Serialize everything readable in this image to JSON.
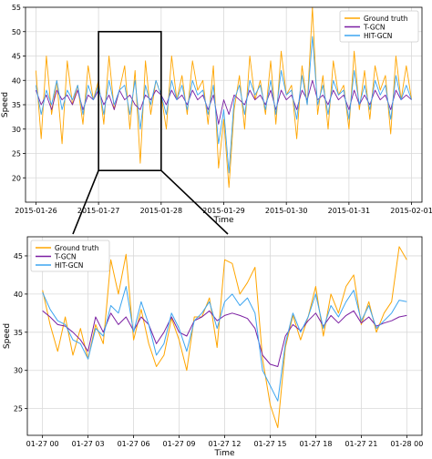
{
  "chart_data": [
    {
      "type": "line",
      "title": "",
      "xlabel": "Time",
      "ylabel": "Speed",
      "xlim": [
        "2015-01-25T20:00",
        "2015-02-01T04:00"
      ],
      "ylim": [
        15,
        55
      ],
      "xticks": [
        "2015-01-26",
        "2015-01-27",
        "2015-01-28",
        "2015-01-29",
        "2015-01-30",
        "2015-01-31",
        "2015-02-01"
      ],
      "yticks": [
        20,
        25,
        30,
        35,
        40,
        45,
        50,
        55
      ],
      "grid": true,
      "legend": "top-right",
      "zoom_box": {
        "x": [
          "2015-01-27T00:00",
          "2015-01-28T00:00"
        ],
        "y": [
          21.5,
          50
        ]
      },
      "series": [
        {
          "name": "Ground truth",
          "color": "#ffa500",
          "x": [
            "2015-01-26T00:00",
            "2015-01-26T02:00",
            "2015-01-26T04:00",
            "2015-01-26T06:00",
            "2015-01-26T08:00",
            "2015-01-26T10:00",
            "2015-01-26T12:00",
            "2015-01-26T14:00",
            "2015-01-26T16:00",
            "2015-01-26T18:00",
            "2015-01-26T20:00",
            "2015-01-26T22:00",
            "2015-01-27T00:00",
            "2015-01-27T02:00",
            "2015-01-27T04:00",
            "2015-01-27T06:00",
            "2015-01-27T08:00",
            "2015-01-27T10:00",
            "2015-01-27T12:00",
            "2015-01-27T14:00",
            "2015-01-27T16:00",
            "2015-01-27T18:00",
            "2015-01-27T20:00",
            "2015-01-27T22:00",
            "2015-01-28T00:00",
            "2015-01-28T02:00",
            "2015-01-28T04:00",
            "2015-01-28T06:00",
            "2015-01-28T08:00",
            "2015-01-28T10:00",
            "2015-01-28T12:00",
            "2015-01-28T14:00",
            "2015-01-28T16:00",
            "2015-01-28T18:00",
            "2015-01-28T20:00",
            "2015-01-28T22:00",
            "2015-01-29T00:00",
            "2015-01-29T02:00",
            "2015-01-29T04:00",
            "2015-01-29T06:00",
            "2015-01-29T08:00",
            "2015-01-29T10:00",
            "2015-01-29T12:00",
            "2015-01-29T14:00",
            "2015-01-29T16:00",
            "2015-01-29T18:00",
            "2015-01-29T20:00",
            "2015-01-29T22:00",
            "2015-01-30T00:00",
            "2015-01-30T02:00",
            "2015-01-30T04:00",
            "2015-01-30T06:00",
            "2015-01-30T08:00",
            "2015-01-30T10:00",
            "2015-01-30T12:00",
            "2015-01-30T14:00",
            "2015-01-30T16:00",
            "2015-01-30T18:00",
            "2015-01-30T20:00",
            "2015-01-30T22:00",
            "2015-01-31T00:00",
            "2015-01-31T02:00",
            "2015-01-31T04:00",
            "2015-01-31T06:00",
            "2015-01-31T08:00",
            "2015-01-31T10:00",
            "2015-01-31T12:00",
            "2015-01-31T14:00",
            "2015-01-31T16:00",
            "2015-01-31T18:00",
            "2015-01-31T20:00",
            "2015-01-31T22:00",
            "2015-02-01T00:00"
          ],
          "y": [
            42,
            28,
            45,
            33,
            40,
            27,
            44,
            35,
            39,
            31,
            43,
            36,
            40,
            31,
            45,
            34,
            38,
            43,
            30,
            42,
            23,
            44,
            33,
            40,
            37,
            30,
            45,
            36,
            41,
            33,
            44,
            38,
            40,
            31,
            43,
            22,
            32,
            18,
            34,
            41,
            30,
            45,
            36,
            40,
            33,
            44,
            31,
            46,
            37,
            39,
            28,
            43,
            35,
            55,
            33,
            41,
            30,
            44,
            37,
            39,
            30,
            46,
            34,
            42,
            32,
            43,
            38,
            41,
            29,
            45,
            36,
            43,
            36
          ]
        },
        {
          "name": "T-GCN",
          "color": "#7b1fa2",
          "x": [
            "2015-01-26T00:00",
            "2015-01-26T02:00",
            "2015-01-26T04:00",
            "2015-01-26T06:00",
            "2015-01-26T08:00",
            "2015-01-26T10:00",
            "2015-01-26T12:00",
            "2015-01-26T14:00",
            "2015-01-26T16:00",
            "2015-01-26T18:00",
            "2015-01-26T20:00",
            "2015-01-26T22:00",
            "2015-01-27T00:00",
            "2015-01-27T02:00",
            "2015-01-27T04:00",
            "2015-01-27T06:00",
            "2015-01-27T08:00",
            "2015-01-27T10:00",
            "2015-01-27T12:00",
            "2015-01-27T14:00",
            "2015-01-27T16:00",
            "2015-01-27T18:00",
            "2015-01-27T20:00",
            "2015-01-27T22:00",
            "2015-01-28T00:00",
            "2015-01-28T02:00",
            "2015-01-28T04:00",
            "2015-01-28T06:00",
            "2015-01-28T08:00",
            "2015-01-28T10:00",
            "2015-01-28T12:00",
            "2015-01-28T14:00",
            "2015-01-28T16:00",
            "2015-01-28T18:00",
            "2015-01-28T20:00",
            "2015-01-28T22:00",
            "2015-01-29T00:00",
            "2015-01-29T02:00",
            "2015-01-29T04:00",
            "2015-01-29T06:00",
            "2015-01-29T08:00",
            "2015-01-29T10:00",
            "2015-01-29T12:00",
            "2015-01-29T14:00",
            "2015-01-29T16:00",
            "2015-01-29T18:00",
            "2015-01-29T20:00",
            "2015-01-29T22:00",
            "2015-01-30T00:00",
            "2015-01-30T02:00",
            "2015-01-30T04:00",
            "2015-01-30T06:00",
            "2015-01-30T08:00",
            "2015-01-30T10:00",
            "2015-01-30T12:00",
            "2015-01-30T14:00",
            "2015-01-30T16:00",
            "2015-01-30T18:00",
            "2015-01-30T20:00",
            "2015-01-30T22:00",
            "2015-01-31T00:00",
            "2015-01-31T02:00",
            "2015-01-31T04:00",
            "2015-01-31T06:00",
            "2015-01-31T08:00",
            "2015-01-31T10:00",
            "2015-01-31T12:00",
            "2015-01-31T14:00",
            "2015-01-31T16:00",
            "2015-01-31T18:00",
            "2015-01-31T20:00",
            "2015-01-31T22:00",
            "2015-02-01T00:00"
          ],
          "y": [
            38,
            35,
            37,
            34,
            38,
            36,
            37,
            35,
            38,
            34,
            37,
            36,
            38,
            35,
            37,
            34,
            38,
            36,
            37,
            35,
            34,
            37,
            36,
            38,
            37,
            35,
            38,
            36,
            37,
            35,
            38,
            36,
            37,
            34,
            37,
            31,
            36,
            33,
            37,
            36,
            35,
            38,
            36,
            37,
            35,
            38,
            34,
            38,
            36,
            37,
            34,
            38,
            36,
            40,
            36,
            37,
            35,
            38,
            36,
            37,
            34,
            38,
            35,
            37,
            35,
            38,
            36,
            37,
            34,
            38,
            36,
            37,
            36
          ]
        },
        {
          "name": "HIT-GCN",
          "color": "#3da5f0",
          "x": [
            "2015-01-26T00:00",
            "2015-01-26T02:00",
            "2015-01-26T04:00",
            "2015-01-26T06:00",
            "2015-01-26T08:00",
            "2015-01-26T10:00",
            "2015-01-26T12:00",
            "2015-01-26T14:00",
            "2015-01-26T16:00",
            "2015-01-26T18:00",
            "2015-01-26T20:00",
            "2015-01-26T22:00",
            "2015-01-27T00:00",
            "2015-01-27T02:00",
            "2015-01-27T04:00",
            "2015-01-27T06:00",
            "2015-01-27T08:00",
            "2015-01-27T10:00",
            "2015-01-27T12:00",
            "2015-01-27T14:00",
            "2015-01-27T16:00",
            "2015-01-27T18:00",
            "2015-01-27T20:00",
            "2015-01-27T22:00",
            "2015-01-28T00:00",
            "2015-01-28T02:00",
            "2015-01-28T04:00",
            "2015-01-28T06:00",
            "2015-01-28T08:00",
            "2015-01-28T10:00",
            "2015-01-28T12:00",
            "2015-01-28T14:00",
            "2015-01-28T16:00",
            "2015-01-28T18:00",
            "2015-01-28T20:00",
            "2015-01-28T22:00",
            "2015-01-29T00:00",
            "2015-01-29T02:00",
            "2015-01-29T04:00",
            "2015-01-29T06:00",
            "2015-01-29T08:00",
            "2015-01-29T10:00",
            "2015-01-29T12:00",
            "2015-01-29T14:00",
            "2015-01-29T16:00",
            "2015-01-29T18:00",
            "2015-01-29T20:00",
            "2015-01-29T22:00",
            "2015-01-30T00:00",
            "2015-01-30T02:00",
            "2015-01-30T04:00",
            "2015-01-30T06:00",
            "2015-01-30T08:00",
            "2015-01-30T10:00",
            "2015-01-30T12:00",
            "2015-01-30T14:00",
            "2015-01-30T16:00",
            "2015-01-30T18:00",
            "2015-01-30T20:00",
            "2015-01-30T22:00",
            "2015-01-31T00:00",
            "2015-01-31T02:00",
            "2015-01-31T04:00",
            "2015-01-31T06:00",
            "2015-01-31T08:00",
            "2015-01-31T10:00",
            "2015-01-31T12:00",
            "2015-01-31T14:00",
            "2015-01-31T16:00",
            "2015-01-31T18:00",
            "2015-01-31T20:00",
            "2015-01-31T22:00",
            "2015-02-01T00:00"
          ],
          "y": [
            39,
            33,
            38,
            35,
            40,
            34,
            38,
            36,
            39,
            33,
            39,
            36,
            39,
            33,
            40,
            35,
            38,
            39,
            33,
            40,
            30,
            39,
            35,
            40,
            37,
            33,
            40,
            36,
            39,
            34,
            40,
            37,
            38,
            33,
            39,
            27,
            34,
            21,
            36,
            39,
            33,
            40,
            37,
            39,
            34,
            40,
            33,
            42,
            37,
            38,
            32,
            41,
            35,
            49,
            35,
            39,
            33,
            40,
            37,
            38,
            32,
            42,
            35,
            39,
            34,
            40,
            37,
            39,
            32,
            41,
            36,
            39,
            36
          ]
        }
      ]
    },
    {
      "type": "line",
      "title": "",
      "xlabel": "Time",
      "ylabel": "Speed",
      "xlim": [
        "2015-01-26T23:00",
        "2015-01-28T01:00"
      ],
      "ylim": [
        21.5,
        47.5
      ],
      "xticks": [
        "01-27 00",
        "01-27 03",
        "01-27 06",
        "01-27 09",
        "01-27 12",
        "01-27 15",
        "01-27 18",
        "01-27 21",
        "01-28 00"
      ],
      "yticks": [
        25,
        30,
        35,
        40,
        45
      ],
      "grid": true,
      "legend": "top-left",
      "series": [
        {
          "name": "Ground truth",
          "color": "#ffa500",
          "x": [
            "2015-01-27T00:00",
            "2015-01-27T00:30",
            "2015-01-27T01:00",
            "2015-01-27T01:30",
            "2015-01-27T02:00",
            "2015-01-27T02:30",
            "2015-01-27T03:00",
            "2015-01-27T03:30",
            "2015-01-27T04:00",
            "2015-01-27T04:30",
            "2015-01-27T05:00",
            "2015-01-27T05:30",
            "2015-01-27T06:00",
            "2015-01-27T06:30",
            "2015-01-27T07:00",
            "2015-01-27T07:30",
            "2015-01-27T08:00",
            "2015-01-27T08:30",
            "2015-01-27T09:00",
            "2015-01-27T09:30",
            "2015-01-27T10:00",
            "2015-01-27T10:30",
            "2015-01-27T11:00",
            "2015-01-27T11:30",
            "2015-01-27T12:00",
            "2015-01-27T12:30",
            "2015-01-27T13:00",
            "2015-01-27T13:30",
            "2015-01-27T14:00",
            "2015-01-27T14:30",
            "2015-01-27T15:00",
            "2015-01-27T15:30",
            "2015-01-27T16:00",
            "2015-01-27T16:30",
            "2015-01-27T17:00",
            "2015-01-27T17:30",
            "2015-01-27T18:00",
            "2015-01-27T18:30",
            "2015-01-27T19:00",
            "2015-01-27T19:30",
            "2015-01-27T20:00",
            "2015-01-27T20:30",
            "2015-01-27T21:00",
            "2015-01-27T21:30",
            "2015-01-27T22:00",
            "2015-01-27T22:30",
            "2015-01-27T23:00",
            "2015-01-27T23:30",
            "2015-01-28T00:00"
          ],
          "y": [
            40.5,
            36,
            32.5,
            37,
            32,
            35.5,
            31.5,
            36,
            33.5,
            44.5,
            40,
            45.2,
            34,
            38,
            33.5,
            30.5,
            32,
            36.8,
            34,
            30,
            37,
            37,
            39.5,
            33,
            44.5,
            44,
            40,
            41.5,
            43.5,
            31.5,
            25.5,
            22.5,
            33,
            37.2,
            34,
            37,
            41,
            34.5,
            40,
            37.5,
            41,
            42.5,
            36,
            39,
            35,
            37.5,
            39,
            46.2,
            44.5
          ]
        },
        {
          "name": "T-GCN",
          "color": "#7b1fa2",
          "x": [
            "2015-01-27T00:00",
            "2015-01-27T00:30",
            "2015-01-27T01:00",
            "2015-01-27T01:30",
            "2015-01-27T02:00",
            "2015-01-27T02:30",
            "2015-01-27T03:00",
            "2015-01-27T03:30",
            "2015-01-27T04:00",
            "2015-01-27T04:30",
            "2015-01-27T05:00",
            "2015-01-27T05:30",
            "2015-01-27T06:00",
            "2015-01-27T06:30",
            "2015-01-27T07:00",
            "2015-01-27T07:30",
            "2015-01-27T08:00",
            "2015-01-27T08:30",
            "2015-01-27T09:00",
            "2015-01-27T09:30",
            "2015-01-27T10:00",
            "2015-01-27T10:30",
            "2015-01-27T11:00",
            "2015-01-27T11:30",
            "2015-01-27T12:00",
            "2015-01-27T12:30",
            "2015-01-27T13:00",
            "2015-01-27T13:30",
            "2015-01-27T14:00",
            "2015-01-27T14:30",
            "2015-01-27T15:00",
            "2015-01-27T15:30",
            "2015-01-27T16:00",
            "2015-01-27T16:30",
            "2015-01-27T17:00",
            "2015-01-27T17:30",
            "2015-01-27T18:00",
            "2015-01-27T18:30",
            "2015-01-27T19:00",
            "2015-01-27T19:30",
            "2015-01-27T20:00",
            "2015-01-27T20:30",
            "2015-01-27T21:00",
            "2015-01-27T21:30",
            "2015-01-27T22:00",
            "2015-01-27T22:30",
            "2015-01-27T23:00",
            "2015-01-27T23:30",
            "2015-01-28T00:00"
          ],
          "y": [
            37.8,
            37,
            36,
            35.8,
            35,
            34,
            32.5,
            37,
            35,
            37.5,
            36,
            37,
            35.2,
            37,
            36,
            33.5,
            35,
            37,
            35,
            34.5,
            36.5,
            37,
            37.8,
            36.5,
            37.2,
            37.5,
            37.2,
            36.8,
            35.5,
            32,
            30.8,
            30.5,
            34.5,
            36,
            35.2,
            36.5,
            37.5,
            35.8,
            37.2,
            36.2,
            37.2,
            37.8,
            36.2,
            37,
            35.8,
            36.2,
            36.5,
            37,
            37.2
          ]
        },
        {
          "name": "HIT-GCN",
          "color": "#3da5f0",
          "x": [
            "2015-01-27T00:00",
            "2015-01-27T00:30",
            "2015-01-27T01:00",
            "2015-01-27T01:30",
            "2015-01-27T02:00",
            "2015-01-27T02:30",
            "2015-01-27T03:00",
            "2015-01-27T03:30",
            "2015-01-27T04:00",
            "2015-01-27T04:30",
            "2015-01-27T05:00",
            "2015-01-27T05:30",
            "2015-01-27T06:00",
            "2015-01-27T06:30",
            "2015-01-27T07:00",
            "2015-01-27T07:30",
            "2015-01-27T08:00",
            "2015-01-27T08:30",
            "2015-01-27T09:00",
            "2015-01-27T09:30",
            "2015-01-27T10:00",
            "2015-01-27T10:30",
            "2015-01-27T11:00",
            "2015-01-27T11:30",
            "2015-01-27T12:00",
            "2015-01-27T12:30",
            "2015-01-27T13:00",
            "2015-01-27T13:30",
            "2015-01-27T14:00",
            "2015-01-27T14:30",
            "2015-01-27T15:00",
            "2015-01-27T15:30",
            "2015-01-27T16:00",
            "2015-01-27T16:30",
            "2015-01-27T17:00",
            "2015-01-27T17:30",
            "2015-01-27T18:00",
            "2015-01-27T18:30",
            "2015-01-27T19:00",
            "2015-01-27T19:30",
            "2015-01-27T20:00",
            "2015-01-27T20:30",
            "2015-01-27T21:00",
            "2015-01-27T21:30",
            "2015-01-27T22:00",
            "2015-01-27T22:30",
            "2015-01-27T23:00",
            "2015-01-27T23:30",
            "2015-01-28T00:00"
          ],
          "y": [
            40.2,
            38,
            36.5,
            36,
            34,
            33.5,
            31.5,
            35.5,
            34.5,
            38.5,
            37.5,
            41,
            35,
            39,
            36,
            32,
            33.5,
            37.5,
            35.5,
            32.5,
            36.5,
            37.5,
            39,
            35.5,
            39,
            40,
            38.5,
            39.5,
            37.5,
            30,
            28,
            26,
            33.5,
            37.5,
            35,
            37,
            40,
            35.5,
            38.5,
            37,
            39,
            40.5,
            36.5,
            38.5,
            35.5,
            36.5,
            37.5,
            39.2,
            39
          ]
        }
      ]
    }
  ]
}
